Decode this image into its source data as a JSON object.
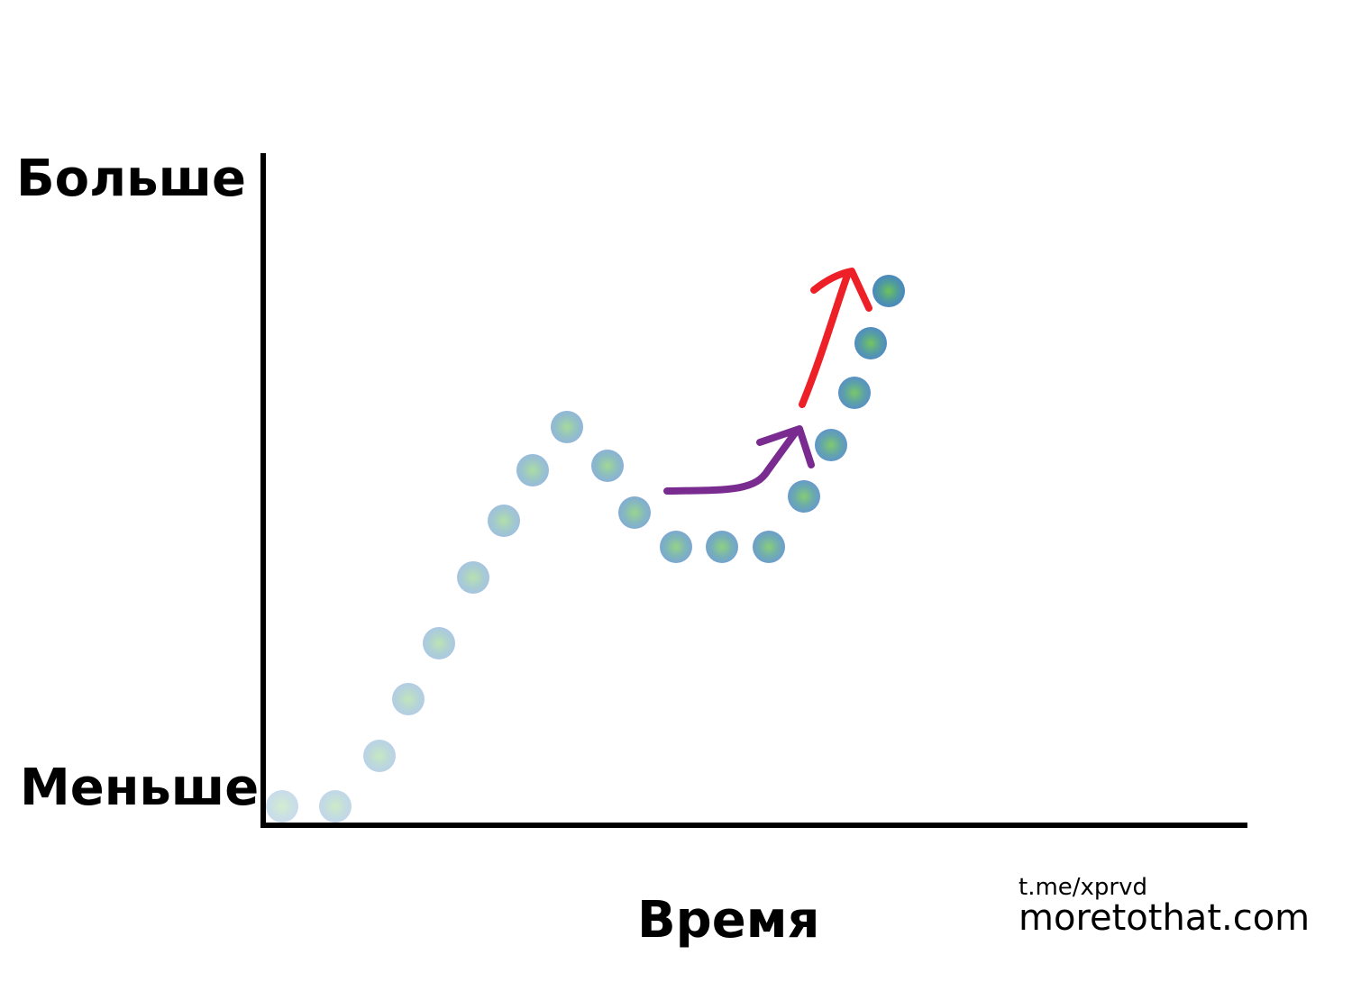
{
  "labels": {
    "y_top": "Больше",
    "y_bottom": "Меньше",
    "x": "Время"
  },
  "watermark": {
    "telegram": "t.me/xprvd",
    "site": "moretothat.com"
  }
}
